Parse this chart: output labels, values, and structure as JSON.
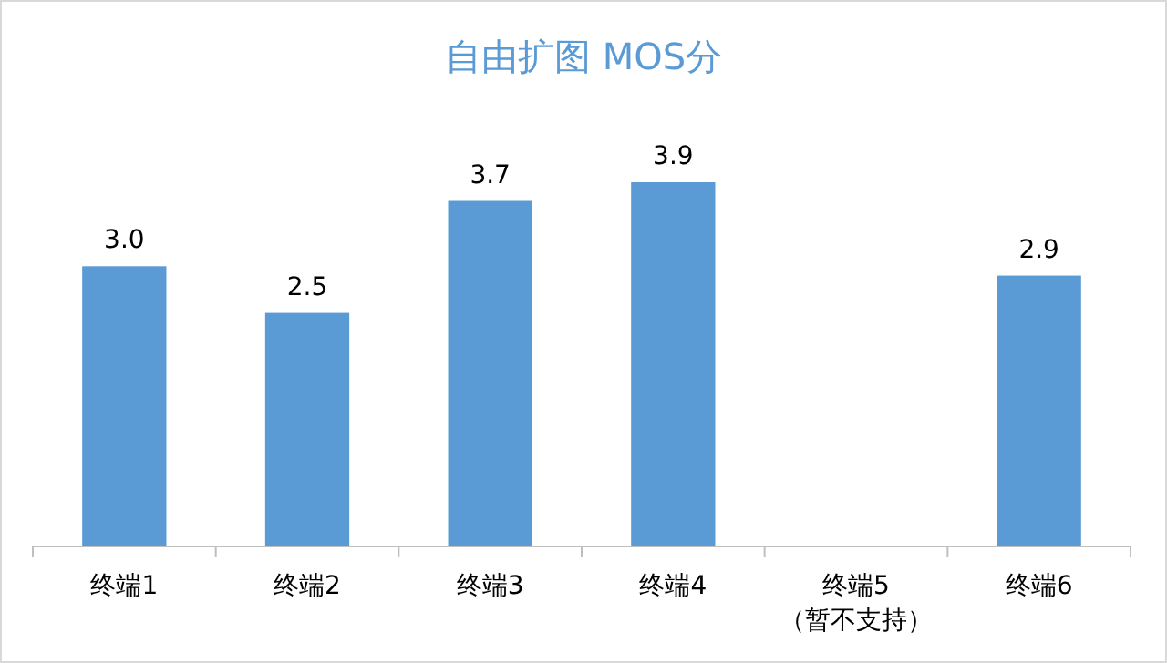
{
  "chart_data": {
    "type": "bar",
    "title": "自由扩图 MOS分",
    "categories": [
      "终端1",
      "终端2",
      "终端3",
      "终端4",
      "终端5\n（暂不支持）",
      "终端6"
    ],
    "values": [
      3.0,
      2.5,
      3.7,
      3.9,
      null,
      2.9
    ],
    "value_labels": [
      "3.0",
      "2.5",
      "3.7",
      "3.9",
      null,
      "2.9"
    ],
    "color": "#5b9bd5",
    "tick_labels": "x"
  }
}
